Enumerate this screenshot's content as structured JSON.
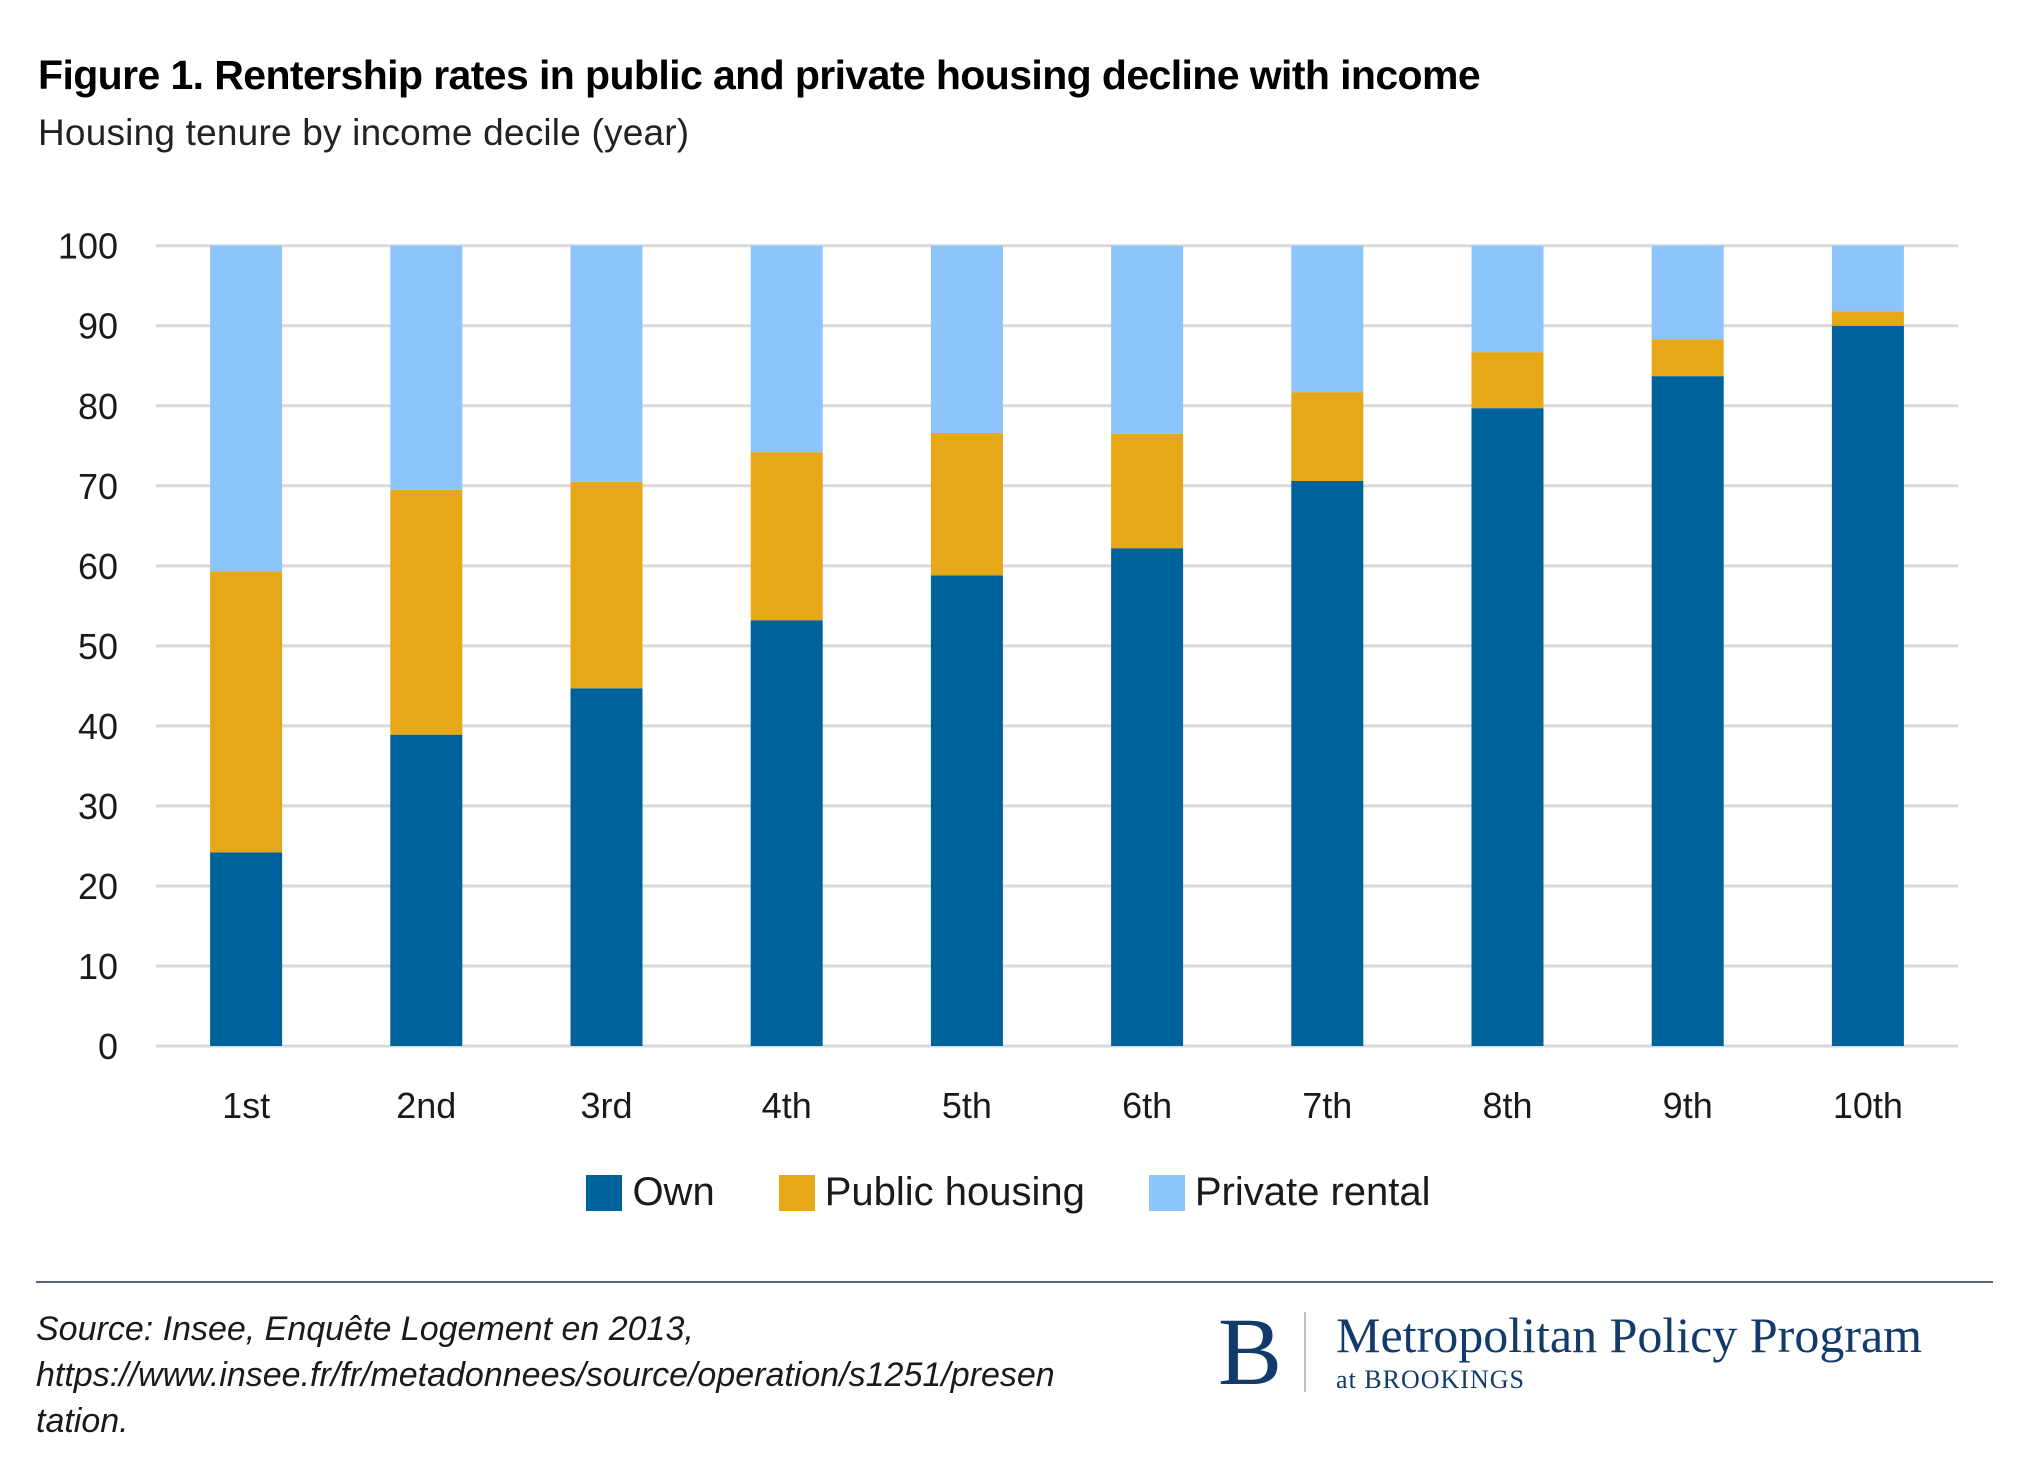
{
  "header": {
    "title": "Figure 1. Rentership rates in public and private housing decline with income",
    "subtitle": "Housing tenure by income decile (year)"
  },
  "chart_data": {
    "type": "bar",
    "stacked": true,
    "title": "Figure 1. Rentership rates in public and private housing decline with income",
    "subtitle": "Housing tenure by income decile (year)",
    "xlabel": "",
    "ylabel": "",
    "categories": [
      "1st",
      "2nd",
      "3rd",
      "4th",
      "5th",
      "6th",
      "7th",
      "8th",
      "9th",
      "10th"
    ],
    "series": [
      {
        "name": "Own",
        "color": "#00629b",
        "values": [
          24.2,
          38.9,
          44.7,
          53.2,
          58.8,
          62.2,
          70.6,
          79.7,
          83.7,
          90.0
        ]
      },
      {
        "name": "Public housing",
        "color": "#e6a817",
        "values": [
          35.1,
          30.6,
          25.8,
          21.0,
          17.8,
          14.3,
          11.1,
          7.0,
          4.6,
          1.8
        ]
      },
      {
        "name": "Private rental",
        "color": "#8bc5fb",
        "values": [
          40.7,
          30.5,
          29.5,
          25.8,
          23.4,
          23.5,
          18.3,
          13.3,
          11.7,
          8.2
        ]
      }
    ],
    "ylim": [
      0,
      100
    ],
    "yticks": [
      0,
      10,
      20,
      30,
      40,
      50,
      60,
      70,
      80,
      90,
      100
    ],
    "grid": true,
    "gridColor": "#d9d9d9",
    "legend": "bottom-center"
  },
  "legend": {
    "items": [
      {
        "label": "Own",
        "color": "#00629b"
      },
      {
        "label": "Public housing",
        "color": "#e6a817"
      },
      {
        "label": "Private rental",
        "color": "#8bc5fb"
      }
    ]
  },
  "footer": {
    "source": "Source: Insee, Enquête Logement en 2013, https://www.insee.fr/fr/metadonnees/source/operation/s1251/presentation.",
    "source_line1": "Source: Insee, Enquête Logement en 2013,",
    "source_line2": "https://www.insee.fr/fr/metadonnees/source/operation/s1251/presen",
    "source_line3": "tation.",
    "logo_letter": "B",
    "logo_main": "Metropolitan Policy Program",
    "logo_sub": "at BROOKINGS"
  }
}
